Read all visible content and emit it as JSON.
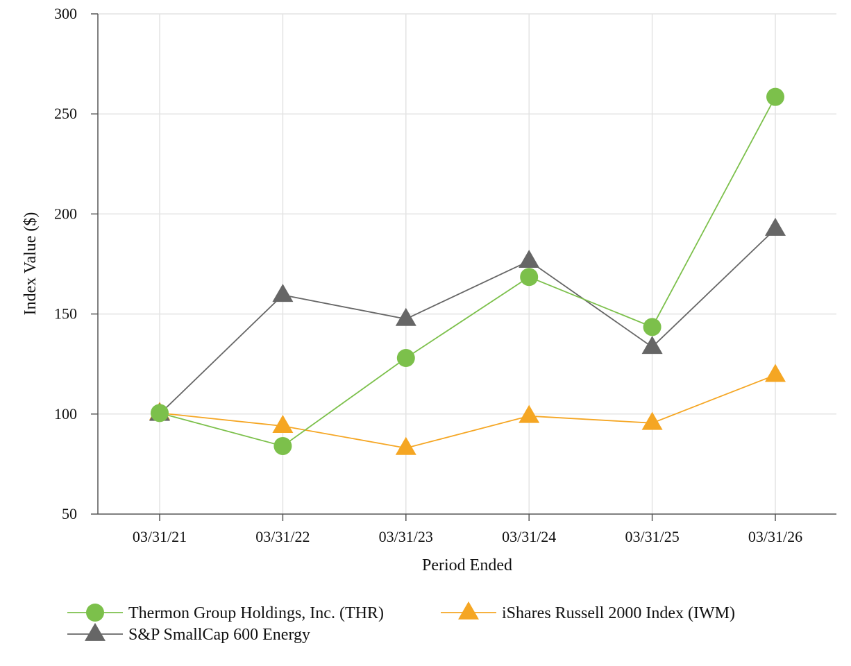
{
  "chart_data": {
    "type": "line",
    "title": "",
    "xlabel": "Period Ended",
    "ylabel": "Index Value ($)",
    "categories": [
      "03/31/21",
      "03/31/22",
      "03/31/23",
      "03/31/24",
      "03/31/25",
      "03/31/26"
    ],
    "ylim": [
      50,
      300
    ],
    "yticks": [
      50,
      100,
      150,
      200,
      250,
      300
    ],
    "grid": true,
    "legend_position": "bottom",
    "series": [
      {
        "name": "Thermon Group Holdings, Inc. (THR)",
        "marker": "circle",
        "line_color": "#7cc04b",
        "marker_color": "#7cc04b",
        "values": [
          100.5,
          84,
          128,
          168.5,
          143.5,
          258.5
        ]
      },
      {
        "name": "iShares Russell 2000 Index (IWM)",
        "marker": "triangle",
        "line_color": "#f5a623",
        "marker_color": "#f5a623",
        "values": [
          100.5,
          94,
          83,
          99,
          95.5,
          119.5
        ]
      },
      {
        "name": "S&P SmallCap 600 Energy",
        "marker": "triangle",
        "line_color": "#666666",
        "marker_color": "#666666",
        "values": [
          100,
          159.5,
          147.5,
          176.5,
          133.5,
          192.5
        ]
      }
    ]
  }
}
